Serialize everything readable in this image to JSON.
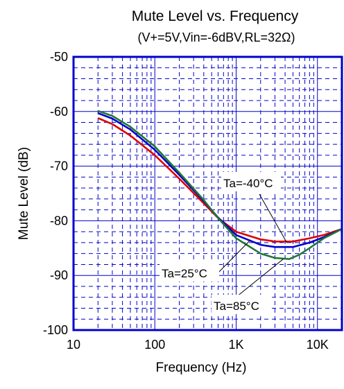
{
  "chart_data": {
    "type": "line",
    "title": "Mute Level vs. Frequency",
    "subtitle": "(V+=5V,Vin=-6dBV,RL=32Ω)",
    "xlabel": "Frequency (Hz)",
    "ylabel": "Mute Level (dB)",
    "xscale": "log",
    "xlim": [
      10,
      20000
    ],
    "ylim": [
      -100,
      -50
    ],
    "grid": true,
    "x_tick_labels": [
      {
        "value": 10,
        "label": "10"
      },
      {
        "value": 100,
        "label": "100"
      },
      {
        "value": 1000,
        "label": "1K"
      },
      {
        "value": 10000,
        "label": "10K"
      }
    ],
    "y_tick_labels": [
      {
        "value": -50,
        "label": "-50"
      },
      {
        "value": -60,
        "label": "-60"
      },
      {
        "value": -70,
        "label": "-70"
      },
      {
        "value": -80,
        "label": "-80"
      },
      {
        "value": -90,
        "label": "-90"
      },
      {
        "value": -100,
        "label": "-100"
      }
    ],
    "series": [
      {
        "name": "Ta=-40°C",
        "color": "#dd0000",
        "points": [
          [
            20,
            -61.2
          ],
          [
            30,
            -62.3
          ],
          [
            50,
            -64.4
          ],
          [
            100,
            -68.0
          ],
          [
            200,
            -72.3
          ],
          [
            400,
            -76.8
          ],
          [
            600,
            -79.5
          ],
          [
            1000,
            -82.0
          ],
          [
            2000,
            -83.4
          ],
          [
            3000,
            -83.8
          ],
          [
            5000,
            -83.8
          ],
          [
            8000,
            -83.2
          ],
          [
            12000,
            -82.6
          ],
          [
            20000,
            -81.5
          ]
        ]
      },
      {
        "name": "Ta=25°C",
        "color": "#0000cc",
        "points": [
          [
            20,
            -60.3
          ],
          [
            30,
            -61.3
          ],
          [
            50,
            -63.3
          ],
          [
            100,
            -67.0
          ],
          [
            200,
            -71.6
          ],
          [
            400,
            -76.4
          ],
          [
            600,
            -79.4
          ],
          [
            1000,
            -82.6
          ],
          [
            2000,
            -84.4
          ],
          [
            3000,
            -84.8
          ],
          [
            5000,
            -84.8
          ],
          [
            8000,
            -84.0
          ],
          [
            12000,
            -83.0
          ],
          [
            20000,
            -81.5
          ]
        ]
      },
      {
        "name": "Ta=85°C",
        "color": "#227733",
        "points": [
          [
            20,
            -59.9
          ],
          [
            30,
            -60.8
          ],
          [
            50,
            -62.8
          ],
          [
            100,
            -66.4
          ],
          [
            200,
            -71.2
          ],
          [
            400,
            -76.2
          ],
          [
            600,
            -79.5
          ],
          [
            1000,
            -83.2
          ],
          [
            2000,
            -86.0
          ],
          [
            3000,
            -86.8
          ],
          [
            4500,
            -87.0
          ],
          [
            6000,
            -86.2
          ],
          [
            8000,
            -85.0
          ],
          [
            12000,
            -83.2
          ],
          [
            20000,
            -81.5
          ]
        ]
      }
    ],
    "annotations": [
      {
        "series": 0,
        "text": "Ta=-40°C",
        "at": [
          4200,
          -84.0
        ]
      },
      {
        "series": 1,
        "text": "Ta=25°C",
        "at": [
          1500,
          -83.5
        ]
      },
      {
        "series": 2,
        "text": "Ta=85°C",
        "at": [
          3800,
          -87.0
        ]
      }
    ]
  }
}
